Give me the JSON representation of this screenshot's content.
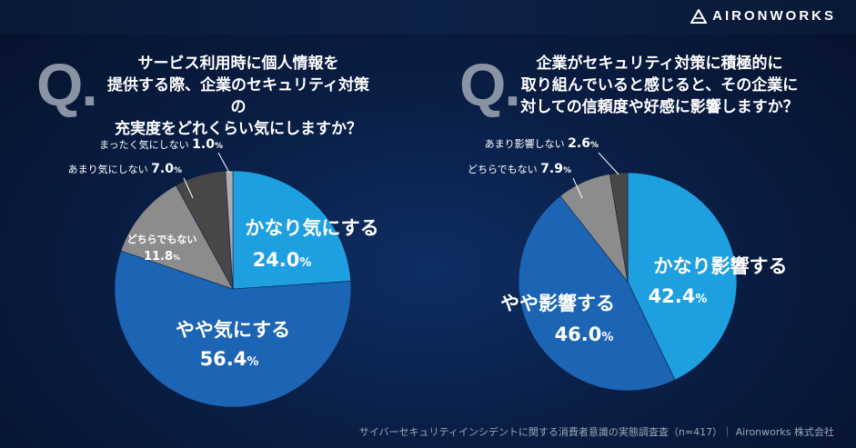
{
  "brand": {
    "name": "AIRONWORKS",
    "icon": "triangle-logo-icon"
  },
  "questions": [
    {
      "q_letter": "Q",
      "q_dot": ".",
      "lines": [
        "サービス利用時に個人情報を",
        "提供する際、企業のセキュリティ対策の",
        "充実度をどれくらい気にしますか？"
      ]
    },
    {
      "q_letter": "Q",
      "q_dot": ".",
      "lines": [
        "企業がセキュリティ対策に積極的に",
        "取り組んでいると感じると、その企業に",
        "対しての信頼度や好感に影響しますか？"
      ]
    }
  ],
  "chart_data": [
    {
      "type": "pie",
      "title": "サービス利用時に個人情報を提供する際、企業のセキュリティ対策の充実度をどれくらい気にしますか？",
      "unit": "%",
      "categories": [
        "かなり気にする",
        "やや気にする",
        "どちらでもない",
        "あまり気にしない",
        "まったく気にしない"
      ],
      "values": [
        24.0,
        56.4,
        11.8,
        7.0,
        1.0
      ],
      "labels": [
        "24.0",
        "56.4",
        "11.8",
        "7.0",
        "1.0"
      ],
      "colors": [
        "#1d9fe0",
        "#1c64b4",
        "#8c8c8c",
        "#474747",
        "#adadad"
      ]
    },
    {
      "type": "pie",
      "title": "企業がセキュリティ対策に積極的に取り組んでいると感じると、その企業に対しての信頼度や好感に影響しますか？",
      "unit": "%",
      "categories": [
        "かなり影響する",
        "やや影響する",
        "どちらでもない",
        "あまり影響しない"
      ],
      "values": [
        42.4,
        46.0,
        7.9,
        2.6
      ],
      "labels": [
        "42.4",
        "46.0",
        "7.9",
        "2.6"
      ],
      "colors": [
        "#1d9fe0",
        "#1c64b4",
        "#8c8c8c",
        "#474747"
      ]
    }
  ],
  "footer": "サイバーセキュリティインシデントに関する消費者意識の実態調査査（n=417）｜ Aironworks 株式会社"
}
